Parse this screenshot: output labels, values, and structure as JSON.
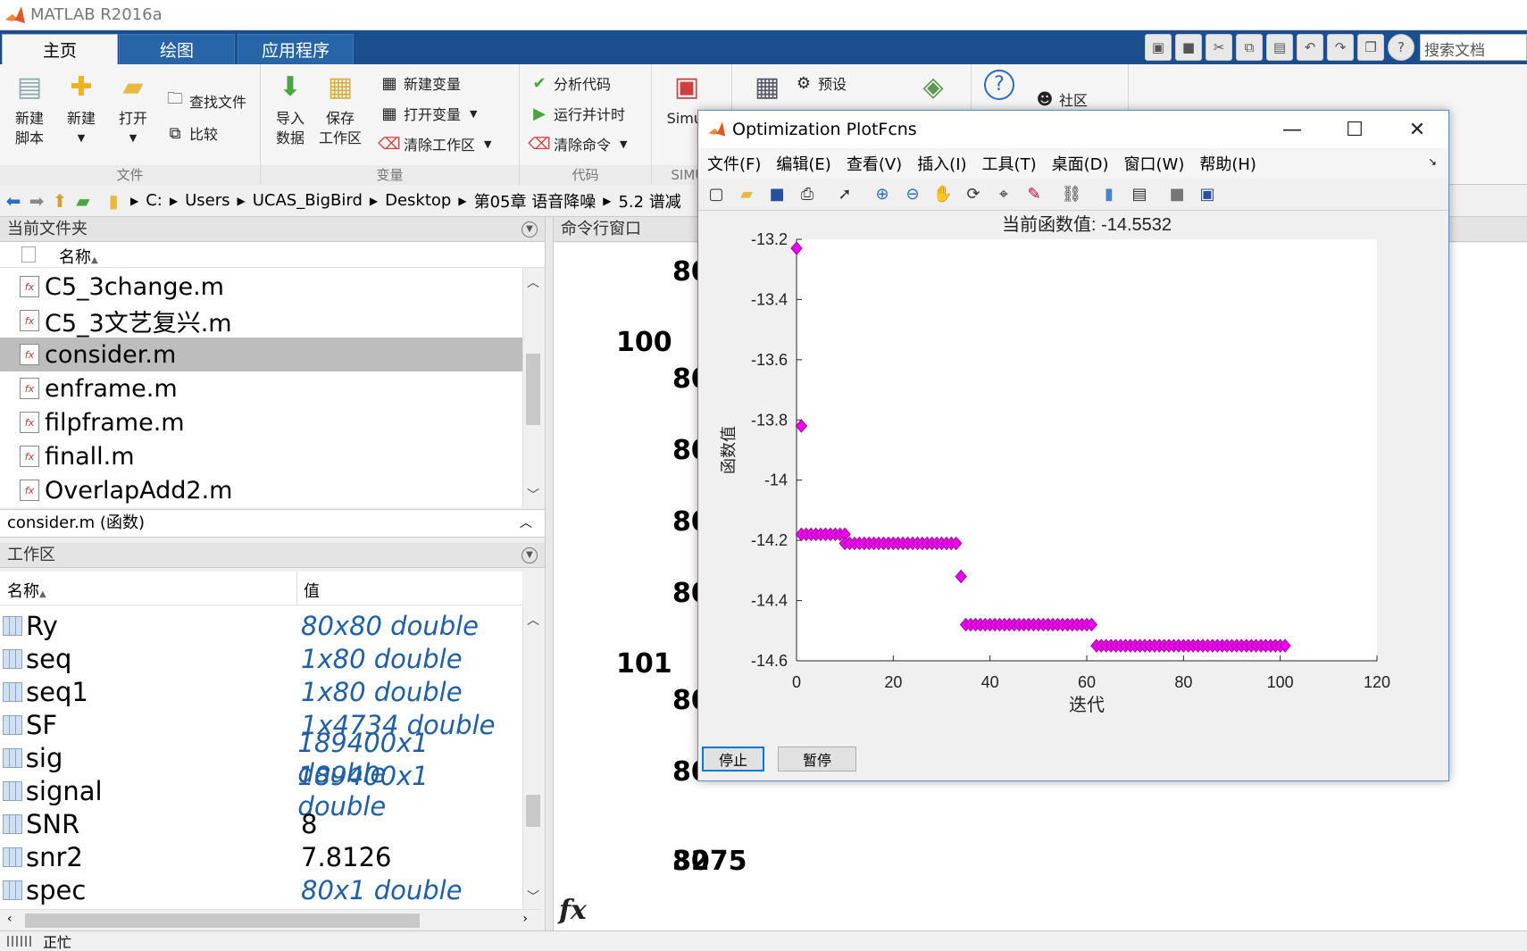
{
  "app": {
    "title": "MATLAB R2016a",
    "tabs": [
      "主页",
      "绘图",
      "应用程序"
    ],
    "search_placeholder": "搜索文档"
  },
  "ribbon": {
    "file_group": {
      "label": "文件",
      "new_script": [
        "新建",
        "脚本"
      ],
      "new": "新建",
      "open": "打开",
      "find_files": "查找文件",
      "compare": "比较"
    },
    "variable_group": {
      "label": "变量",
      "import": [
        "导入",
        "数据"
      ],
      "save": [
        "保存",
        "工作区"
      ],
      "new_var": "新建变量",
      "open_var": "打开变量",
      "clear_ws": "清除工作区"
    },
    "code_group": {
      "label": "代码",
      "analyze": "分析代码",
      "run_time": "运行并计时",
      "clear_cmd": "清除命令"
    },
    "simulink_group": {
      "label": "SIMUL",
      "simulink": "Simul"
    },
    "env_group": {
      "prefs": "预设"
    },
    "resources_group": {
      "community": "社区"
    }
  },
  "address": {
    "crumbs": [
      "C:",
      "Users",
      "UCAS_BigBird",
      "Desktop",
      "第05章 语音降噪",
      "5.2 谱减"
    ]
  },
  "current_folder": {
    "title": "当前文件夹",
    "name_col": "名称",
    "files": [
      "C5_3change.m",
      "C5_3文艺复兴.m",
      "consider.m",
      "enframe.m",
      "filpframe.m",
      "finall.m",
      "OverlapAdd2.m"
    ],
    "selected_index": 2,
    "details": "consider.m  (函数)"
  },
  "workspace": {
    "title": "工作区",
    "name_col": "名称",
    "value_col": "值",
    "rows": [
      {
        "name": "Ry",
        "value": "80x80 double",
        "italic": true
      },
      {
        "name": "seq",
        "value": "1x80 double",
        "italic": true
      },
      {
        "name": "seq1",
        "value": "1x80 double",
        "italic": true
      },
      {
        "name": "SF",
        "value": "1x4734 double",
        "italic": true
      },
      {
        "name": "sig",
        "value": "189400x1 double",
        "italic": true
      },
      {
        "name": "signal",
        "value": "189400x1 double",
        "italic": true
      },
      {
        "name": "SNR",
        "value": "8",
        "italic": false
      },
      {
        "name": "snr2",
        "value": "7.8126",
        "italic": false
      },
      {
        "name": "spec",
        "value": "80x1 double",
        "italic": true
      }
    ]
  },
  "command_window": {
    "title": "命令行窗口",
    "lines": [
      "80",
      "100",
      "80",
      "80",
      "80",
      "80",
      "101",
      "80",
      "80",
      "80"
    ],
    "last_value": "3275",
    "fx": "fx"
  },
  "status": {
    "text": "正忙"
  },
  "figure": {
    "title": "Optimization PlotFcns",
    "menu": [
      "文件(F)",
      "编辑(E)",
      "查看(V)",
      "插入(I)",
      "工具(T)",
      "桌面(D)",
      "窗口(W)",
      "帮助(H)"
    ],
    "stop_label": "停止",
    "pause_label": "暂停",
    "marker_color": "#ee00ee"
  },
  "chart_data": {
    "type": "scatter",
    "title": "当前函数值: -14.5532",
    "xlabel": "迭代",
    "ylabel": "函数值",
    "xlim": [
      0,
      120
    ],
    "ylim": [
      -14.6,
      -13.2
    ],
    "xticks": [
      "0",
      "20",
      "40",
      "60",
      "80",
      "100",
      "120"
    ],
    "yticks": [
      "-13.2",
      "-13.4",
      "-13.6",
      "-13.8",
      "-14",
      "-14.2",
      "-14.4",
      "-14.6"
    ],
    "series": [
      {
        "marker": "diamond",
        "points": [
          [
            0,
            -13.23
          ],
          [
            1,
            -13.82
          ],
          [
            1,
            -14.18
          ],
          [
            2,
            -14.18
          ],
          [
            3,
            -14.18
          ],
          [
            4,
            -14.18
          ],
          [
            5,
            -14.18
          ],
          [
            6,
            -14.18
          ],
          [
            7,
            -14.18
          ],
          [
            8,
            -14.18
          ],
          [
            9,
            -14.18
          ],
          [
            10,
            -14.18
          ],
          [
            10,
            -14.21
          ],
          [
            11,
            -14.21
          ],
          [
            12,
            -14.21
          ],
          [
            13,
            -14.21
          ],
          [
            14,
            -14.21
          ],
          [
            15,
            -14.21
          ],
          [
            16,
            -14.21
          ],
          [
            17,
            -14.21
          ],
          [
            18,
            -14.21
          ],
          [
            19,
            -14.21
          ],
          [
            20,
            -14.21
          ],
          [
            21,
            -14.21
          ],
          [
            22,
            -14.21
          ],
          [
            23,
            -14.21
          ],
          [
            24,
            -14.21
          ],
          [
            25,
            -14.21
          ],
          [
            26,
            -14.21
          ],
          [
            27,
            -14.21
          ],
          [
            28,
            -14.21
          ],
          [
            29,
            -14.21
          ],
          [
            30,
            -14.21
          ],
          [
            31,
            -14.21
          ],
          [
            32,
            -14.21
          ],
          [
            33,
            -14.21
          ],
          [
            34,
            -14.32
          ],
          [
            35,
            -14.48
          ],
          [
            36,
            -14.48
          ],
          [
            37,
            -14.48
          ],
          [
            38,
            -14.48
          ],
          [
            39,
            -14.48
          ],
          [
            40,
            -14.48
          ],
          [
            41,
            -14.48
          ],
          [
            42,
            -14.48
          ],
          [
            43,
            -14.48
          ],
          [
            44,
            -14.48
          ],
          [
            45,
            -14.48
          ],
          [
            46,
            -14.48
          ],
          [
            47,
            -14.48
          ],
          [
            48,
            -14.48
          ],
          [
            49,
            -14.48
          ],
          [
            50,
            -14.48
          ],
          [
            51,
            -14.48
          ],
          [
            52,
            -14.48
          ],
          [
            53,
            -14.48
          ],
          [
            54,
            -14.48
          ],
          [
            55,
            -14.48
          ],
          [
            56,
            -14.48
          ],
          [
            57,
            -14.48
          ],
          [
            58,
            -14.48
          ],
          [
            59,
            -14.48
          ],
          [
            60,
            -14.48
          ],
          [
            61,
            -14.48
          ],
          [
            62,
            -14.55
          ],
          [
            63,
            -14.55
          ],
          [
            64,
            -14.55
          ],
          [
            65,
            -14.55
          ],
          [
            66,
            -14.55
          ],
          [
            67,
            -14.55
          ],
          [
            68,
            -14.55
          ],
          [
            69,
            -14.55
          ],
          [
            70,
            -14.55
          ],
          [
            71,
            -14.55
          ],
          [
            72,
            -14.55
          ],
          [
            73,
            -14.55
          ],
          [
            74,
            -14.55
          ],
          [
            75,
            -14.55
          ],
          [
            76,
            -14.55
          ],
          [
            77,
            -14.55
          ],
          [
            78,
            -14.55
          ],
          [
            79,
            -14.55
          ],
          [
            80,
            -14.55
          ],
          [
            81,
            -14.55
          ],
          [
            82,
            -14.55
          ],
          [
            83,
            -14.55
          ],
          [
            84,
            -14.55
          ],
          [
            85,
            -14.55
          ],
          [
            86,
            -14.55
          ],
          [
            87,
            -14.55
          ],
          [
            88,
            -14.55
          ],
          [
            89,
            -14.55
          ],
          [
            90,
            -14.55
          ],
          [
            91,
            -14.55
          ],
          [
            92,
            -14.55
          ],
          [
            93,
            -14.55
          ],
          [
            94,
            -14.55
          ],
          [
            95,
            -14.55
          ],
          [
            96,
            -14.55
          ],
          [
            97,
            -14.55
          ],
          [
            98,
            -14.55
          ],
          [
            99,
            -14.55
          ],
          [
            100,
            -14.55
          ],
          [
            101,
            -14.55
          ]
        ]
      }
    ],
    "grid": false
  }
}
